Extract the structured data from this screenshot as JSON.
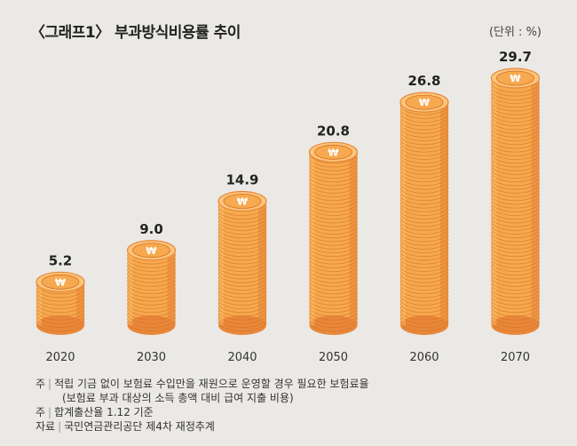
{
  "title": "〈그래프1〉 부과방식비용률  추이",
  "unit": "(단위 : %)",
  "chart_data": {
    "type": "bar",
    "title": "〈그래프1〉 부과방식비용률 추이",
    "categories": [
      "2020",
      "2030",
      "2040",
      "2050",
      "2060",
      "2070"
    ],
    "values": [
      5.2,
      9.0,
      14.9,
      20.8,
      26.8,
      29.7
    ],
    "value_labels": [
      "5.2",
      "9.0",
      "14.9",
      "20.8",
      "26.8",
      "29.7"
    ],
    "ylabel": "%",
    "xlabel": "",
    "ylim": [
      0,
      29.7
    ],
    "style": "stacked coins"
  },
  "colors": {
    "background": "#ebe9e6",
    "coin_face": "#f6a94e",
    "coin_rim": "#e8873a",
    "coin_dark": "#d56f22",
    "coin_light": "#fcc57b"
  },
  "notes": [
    {
      "prefix": "주",
      "text": "적립 기금 없이 보험료 수입만을 재원으로 운영할 경우 필요한 보험료율"
    },
    {
      "prefix": "",
      "text": "(보험료 부과 대상의 소득 총액 대비 급여 지출 비용)"
    },
    {
      "prefix": "주",
      "text": "합계출산율 1.12 기준"
    },
    {
      "prefix": "자료",
      "text": "국민연금관리공단 제4차 재정추계"
    }
  ],
  "icons": {
    "coin": "won-coin-icon"
  }
}
